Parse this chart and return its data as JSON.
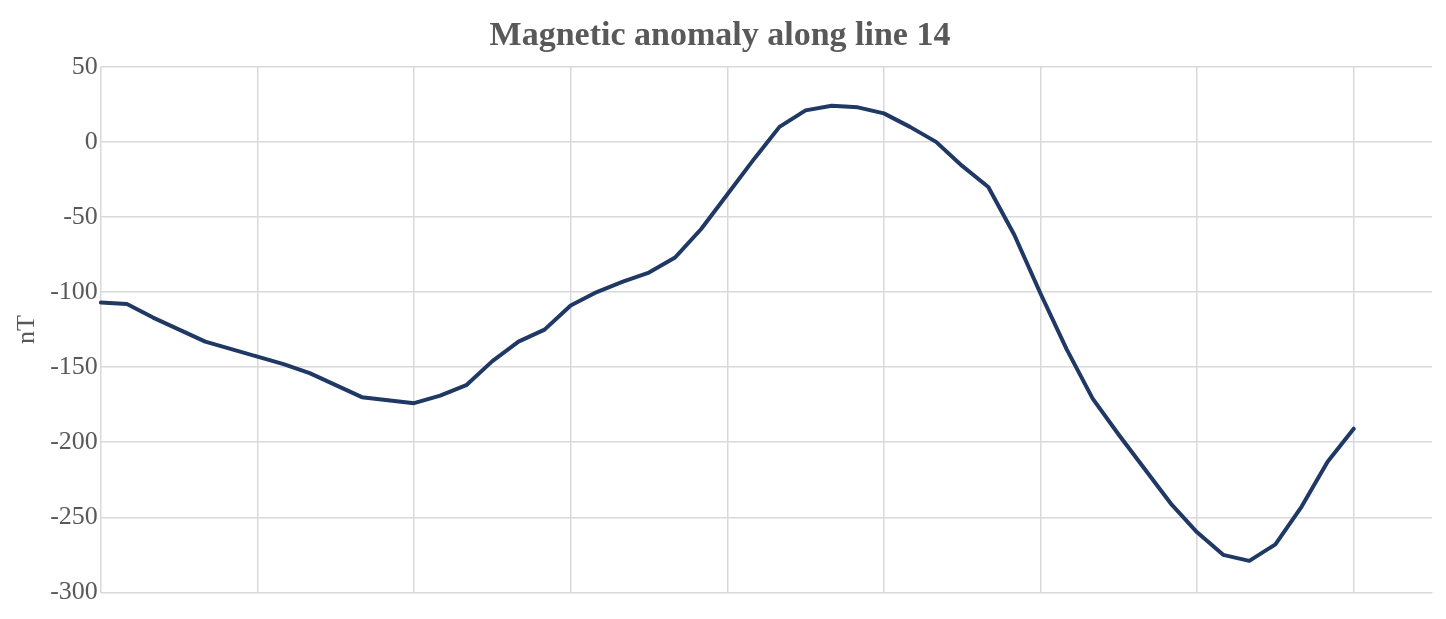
{
  "chart_data": {
    "type": "line",
    "title": "Magnetic anomaly along line 14",
    "ylabel": "nT",
    "categories": [
      null,
      null,
      null,
      null,
      null,
      null,
      null,
      null,
      null,
      null,
      null,
      null,
      null,
      null,
      null,
      null,
      null,
      null,
      null,
      null,
      null,
      null,
      null,
      null,
      null,
      null,
      null,
      null,
      null,
      null,
      null,
      null,
      null,
      null,
      null,
      null,
      null,
      null,
      null,
      null,
      null,
      null,
      null,
      null,
      null,
      null,
      null,
      null,
      null,
      null,
      null,
      null
    ],
    "series": [
      {
        "color": "#1f3864",
        "values": [
          -107,
          -108,
          -117,
          -125,
          -133,
          -138,
          -143,
          -148,
          -154,
          -162,
          -170,
          -172,
          -174,
          -169,
          -162,
          -146,
          -133,
          -125,
          -109,
          -100,
          -93,
          -87,
          -77,
          -58,
          -35,
          -12,
          10,
          21,
          24,
          23,
          19,
          10,
          0,
          -16,
          -30,
          -62,
          -101,
          -138,
          -171,
          -195,
          -218,
          -241,
          -260,
          -275,
          -279,
          -268,
          -243,
          -213,
          -191,
          null,
          null,
          null
        ]
      }
    ],
    "ylim": [
      -300,
      50
    ],
    "yticks": [
      -300,
      -250,
      -200,
      -150,
      -100,
      -50,
      0,
      50
    ],
    "grid": true,
    "legend": false,
    "marker": "none",
    "line_style": "solid",
    "tick_labels": "y"
  }
}
